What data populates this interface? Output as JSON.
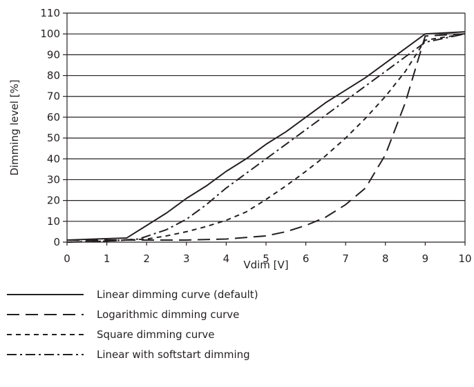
{
  "chart_data": {
    "type": "line",
    "title": "",
    "xlabel": "Vdim [V]",
    "ylabel": "Dimming level [%]",
    "xlim": [
      0,
      10
    ],
    "ylim": [
      0,
      110
    ],
    "x_ticks": [
      0,
      1,
      2,
      3,
      4,
      5,
      6,
      7,
      8,
      9,
      10
    ],
    "y_ticks": [
      0,
      10,
      20,
      30,
      40,
      50,
      60,
      70,
      80,
      90,
      100,
      110
    ],
    "grid": "horizontal",
    "legend_position": "bottom",
    "series": [
      {
        "name": "Linear dimming curve (default)",
        "dash": "solid",
        "points": [
          [
            0,
            1
          ],
          [
            1.5,
            2
          ],
          [
            2,
            8
          ],
          [
            2.5,
            14
          ],
          [
            3,
            21
          ],
          [
            3.5,
            27
          ],
          [
            4,
            34
          ],
          [
            4.5,
            40
          ],
          [
            5,
            47
          ],
          [
            5.5,
            53
          ],
          [
            6,
            60
          ],
          [
            6.5,
            67
          ],
          [
            7,
            73
          ],
          [
            7.5,
            79
          ],
          [
            8,
            86
          ],
          [
            8.5,
            93
          ],
          [
            9,
            100
          ],
          [
            10,
            101
          ]
        ]
      },
      {
        "name": "Logarithmic dimming curve",
        "dash": "long-dash",
        "points": [
          [
            0,
            1
          ],
          [
            1,
            1
          ],
          [
            2,
            1
          ],
          [
            3,
            1
          ],
          [
            4,
            1.5
          ],
          [
            5,
            3
          ],
          [
            5.5,
            5
          ],
          [
            6,
            8
          ],
          [
            6.5,
            12
          ],
          [
            7,
            18
          ],
          [
            7.5,
            26
          ],
          [
            8,
            42
          ],
          [
            8.5,
            67
          ],
          [
            9,
            99
          ],
          [
            10,
            100
          ]
        ]
      },
      {
        "name": "Square dimming curve",
        "dash": "short-dash",
        "points": [
          [
            0,
            0
          ],
          [
            1,
            0.5
          ],
          [
            2,
            1.5
          ],
          [
            2.5,
            3
          ],
          [
            3,
            5
          ],
          [
            3.5,
            7.5
          ],
          [
            4,
            10.5
          ],
          [
            4.5,
            14.5
          ],
          [
            5,
            20.5
          ],
          [
            5.5,
            27
          ],
          [
            6,
            34
          ],
          [
            6.5,
            41.5
          ],
          [
            7,
            50
          ],
          [
            7.5,
            59.5
          ],
          [
            8,
            70
          ],
          [
            8.5,
            82
          ],
          [
            9,
            97
          ],
          [
            10,
            100
          ]
        ]
      },
      {
        "name": "Linear with softstart dimming",
        "dash": "dash-dot",
        "points": [
          [
            0,
            0
          ],
          [
            1,
            0.5
          ],
          [
            1.8,
            1.5
          ],
          [
            2.5,
            6
          ],
          [
            3,
            11
          ],
          [
            3.5,
            18
          ],
          [
            4,
            26
          ],
          [
            4.5,
            33
          ],
          [
            5,
            40
          ],
          [
            5.5,
            47
          ],
          [
            6,
            54
          ],
          [
            6.5,
            61
          ],
          [
            7,
            68
          ],
          [
            7.5,
            75
          ],
          [
            8,
            82
          ],
          [
            8.5,
            89
          ],
          [
            9,
            96
          ],
          [
            10,
            100
          ]
        ]
      }
    ]
  }
}
